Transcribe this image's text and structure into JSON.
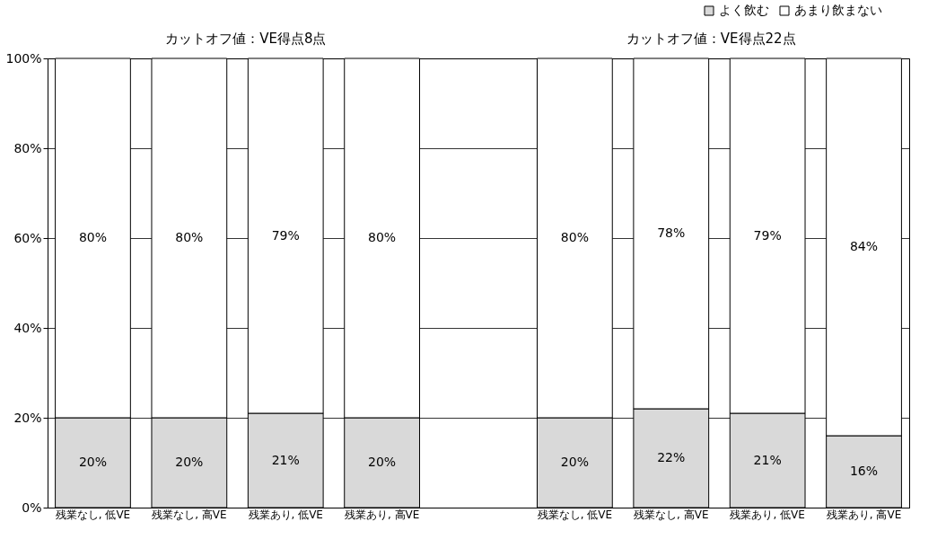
{
  "chart_data": {
    "type": "bar",
    "stacked": true,
    "categories": [
      "残業なし, 低VE",
      "残業なし, 高VE",
      "残業あり, 低VE",
      "残業あり, 高VE",
      null,
      "残業なし, 低VE",
      "残業なし, 高VE",
      "残業あり, 低VE",
      "残業あり, 高VE"
    ],
    "series": [
      {
        "name": "よく飲む",
        "color": "#d9d9d9",
        "values": [
          20,
          20,
          21,
          20,
          null,
          20,
          22,
          21,
          16
        ],
        "value_labels": [
          "20%",
          "20%",
          "21%",
          "20%",
          null,
          "20%",
          "22%",
          "21%",
          "16%"
        ]
      },
      {
        "name": "あまり飲まない",
        "color": "#ffffff",
        "values": [
          80,
          80,
          79,
          80,
          null,
          80,
          78,
          79,
          84
        ],
        "value_labels": [
          "80%",
          "80%",
          "79%",
          "80%",
          null,
          "80%",
          "78%",
          "79%",
          "84%"
        ]
      }
    ],
    "ylim": [
      0,
      100
    ],
    "yticks": [
      {
        "value": 0,
        "label": "0%"
      },
      {
        "value": 20,
        "label": "20%"
      },
      {
        "value": 40,
        "label": "40%"
      },
      {
        "value": 60,
        "label": "60%"
      },
      {
        "value": 80,
        "label": "80%"
      },
      {
        "value": 100,
        "label": "100%"
      }
    ],
    "grid": "y",
    "legend": "top right",
    "annotations": [
      "カットオフ値：VE得点8点",
      "カットオフ値：VE得点22点"
    ]
  }
}
